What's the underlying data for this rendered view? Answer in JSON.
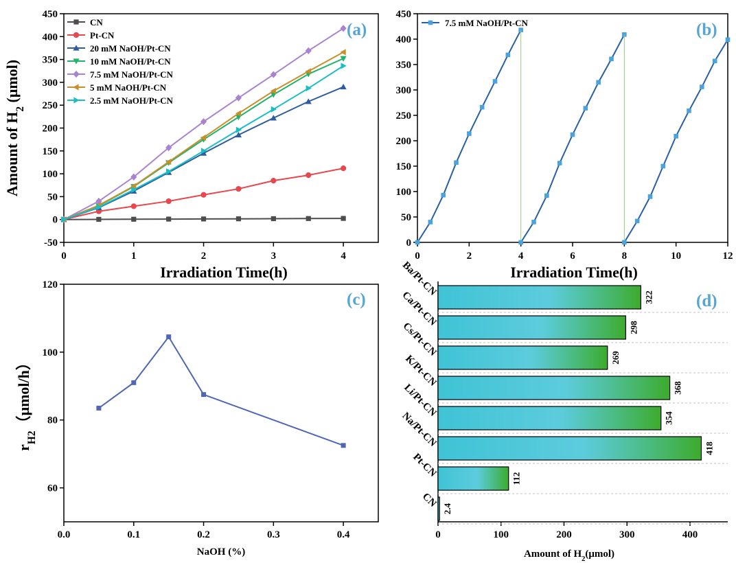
{
  "colors": {
    "CN": "#4d4d4d",
    "Pt-CN": "#e8474e",
    "20 mM NaOH/Pt-CN": "#2f5c9f",
    "10 mM NaOH/Pt-CN": "#21b36a",
    "7.5 mM NaOH/Pt-CN": "#a983cf",
    "5 mM NaOH/Pt-CN": "#c98f2a",
    "2.5 mM NaOH/Pt-CN": "#19bdc4",
    "panel_b_line": "#2a5fa6",
    "panel_b_marker": "#4aa3db",
    "panel_c_line": "#5166b5",
    "panel_label": "#55a6d4",
    "bar_left": "#3fc3d6",
    "bar_right": "#3dab2b"
  },
  "chart_data": [
    {
      "panel": "(a)",
      "type": "line",
      "xlabel": "Irradiation Time(h)",
      "ylabel": "Amount of H2 (μmol)",
      "ylabel_parts": {
        "main": "Amount of H",
        "sub": "2",
        "unit": " (μmol)"
      },
      "xlim": [
        0,
        4.5
      ],
      "ylim": [
        -50,
        450
      ],
      "xticks": [
        "0",
        "1",
        "2",
        "3",
        "4"
      ],
      "yticks": [
        "-50",
        "0",
        "50",
        "100",
        "150",
        "200",
        "250",
        "300",
        "350",
        "400",
        "450"
      ],
      "legend_position": "top-left",
      "x": [
        0,
        0.5,
        1,
        1.5,
        2,
        2.5,
        3,
        3.5,
        4
      ],
      "series": [
        {
          "name": "CN",
          "marker": "square",
          "values": [
            0,
            0.3,
            0.6,
            0.9,
            1.2,
            1.5,
            1.8,
            2.1,
            2.4
          ]
        },
        {
          "name": "Pt-CN",
          "marker": "circle",
          "values": [
            0,
            18,
            29,
            40,
            54,
            67,
            85,
            97,
            112
          ]
        },
        {
          "name": "20 mM NaOH/Pt-CN",
          "marker": "triangle-up",
          "values": [
            0,
            26,
            62,
            103,
            145,
            185,
            222,
            258,
            290
          ]
        },
        {
          "name": "10 mM NaOH/Pt-CN",
          "marker": "triangle-down",
          "values": [
            0,
            30,
            72,
            124,
            175,
            224,
            273,
            318,
            352
          ]
        },
        {
          "name": "7.5 mM NaOH/Pt-CN",
          "marker": "diamond",
          "values": [
            0,
            40,
            93,
            157,
            214,
            266,
            317,
            369,
            418
          ]
        },
        {
          "name": "5 mM NaOH/Pt-CN",
          "marker": "triangle-left",
          "values": [
            0,
            31,
            73,
            126,
            179,
            232,
            281,
            324,
            366
          ]
        },
        {
          "name": "2.5 mM NaOH/Pt-CN",
          "marker": "triangle-right",
          "values": [
            0,
            27,
            65,
            105,
            150,
            196,
            241,
            287,
            336
          ]
        }
      ]
    },
    {
      "panel": "(b)",
      "type": "line",
      "xlabel": "Irradiation Time(h)",
      "xlim": [
        0,
        12
      ],
      "ylim": [
        0,
        450
      ],
      "xticks": [
        "0",
        "2",
        "4",
        "6",
        "8",
        "10",
        "12"
      ],
      "yticks": [
        "0",
        "50",
        "100",
        "150",
        "200",
        "250",
        "300",
        "350",
        "400",
        "450"
      ],
      "legend_position": "top-left",
      "series": [
        {
          "name": "7.5 mM NaOH/Pt-CN",
          "cycles": [
            {
              "x": [
                0,
                0.5,
                1,
                1.5,
                2,
                2.5,
                3,
                3.5,
                4
              ],
              "y": [
                0,
                40,
                93,
                157,
                214,
                266,
                317,
                369,
                418
              ]
            },
            {
              "x": [
                4,
                4.5,
                5,
                5.5,
                6,
                6.5,
                7,
                7.5,
                8
              ],
              "y": [
                0,
                40,
                92,
                156,
                212,
                264,
                315,
                361,
                409
              ]
            },
            {
              "x": [
                8,
                8.5,
                9,
                9.5,
                10,
                10.5,
                11,
                11.5,
                12
              ],
              "y": [
                0,
                42,
                90,
                150,
                209,
                259,
                306,
                357,
                399
              ]
            }
          ]
        }
      ]
    },
    {
      "panel": "(c)",
      "type": "line",
      "xlabel": "NaOH (%)",
      "ylabel_parts": {
        "main": "r",
        "sub": "H2",
        "unit": "（μmol/h）"
      },
      "xlim": [
        0,
        0.45
      ],
      "ylim": [
        50,
        120
      ],
      "xticks": [
        "0.0",
        "0.1",
        "0.2",
        "0.3",
        "0.4"
      ],
      "yticks": [
        "60",
        "80",
        "100",
        "120"
      ],
      "x": [
        0.05,
        0.1,
        0.15,
        0.2,
        0.4
      ],
      "values": [
        83.5,
        91,
        104.5,
        87.5,
        72.5
      ]
    },
    {
      "panel": "(d)",
      "type": "bar",
      "orientation": "horizontal",
      "xlabel": "Amount of H2(μmol)",
      "xlabel_parts": {
        "main": "Amount of H",
        "sub": "2",
        "unit": "(μmol)"
      },
      "xlim": [
        0,
        460
      ],
      "xticks": [
        "0",
        "100",
        "200",
        "300",
        "400"
      ],
      "categories": [
        "Ba/Pt-CN",
        "Ca/Pt-CN",
        "Cs/Pt-CN",
        "K/Pt-CN",
        "Li/Pt-CN",
        "Na/Pt-CN",
        "Pt-CN",
        "CN"
      ],
      "bar_values": [
        322,
        298,
        269,
        368,
        354,
        418,
        112,
        2.4
      ],
      "bar_labels": [
        "322",
        "298",
        "269",
        "368",
        "354",
        "418",
        "112",
        "2.4"
      ]
    }
  ]
}
